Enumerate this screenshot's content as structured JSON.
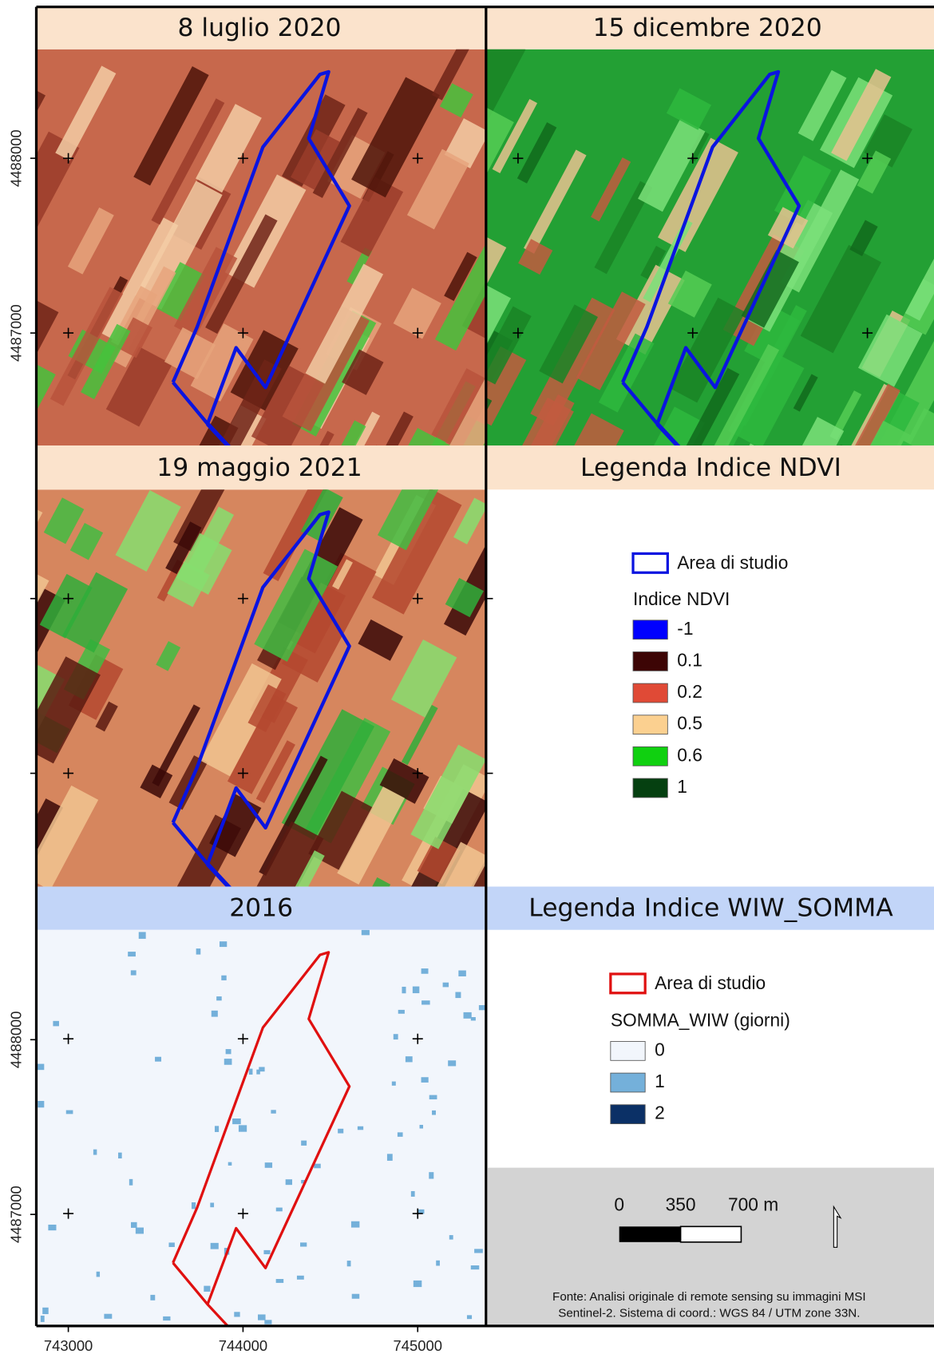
{
  "panels": [
    {
      "title": "8 luglio 2020"
    },
    {
      "title": "15 dicembre 2020"
    },
    {
      "title": "19 maggio 2021"
    },
    {
      "title": "2016"
    }
  ],
  "legend_titles": [
    "Legenda Indice NDVI",
    "Legenda Indice WIW_SOMMA"
  ],
  "ndvi_legend": {
    "area": "Area di studio",
    "area_color": "#0a14e0",
    "title": "Indice NDVI",
    "items": [
      {
        "label": "-1",
        "color": "#0000ff"
      },
      {
        "label": "0.1",
        "color": "#3d0505"
      },
      {
        "label": "0.2",
        "color": "#e04a36"
      },
      {
        "label": "0.5",
        "color": "#fbd090"
      },
      {
        "label": "0.6",
        "color": "#10d010"
      },
      {
        "label": "1",
        "color": "#054010"
      }
    ]
  },
  "wiw_legend": {
    "area": "Area di studio",
    "area_color": "#e01010",
    "title": "SOMMA_WIW (giorni)",
    "items": [
      {
        "label": "0",
        "color": "#f2f6fc"
      },
      {
        "label": "1",
        "color": "#74b0da"
      },
      {
        "label": "2",
        "color": "#0b3066"
      }
    ]
  },
  "axes": {
    "y_labels": [
      "4488000",
      "4487000"
    ],
    "x_labels": [
      "743000",
      "744000",
      "745000"
    ]
  },
  "scale_bar": {
    "labels": [
      "0",
      "350",
      "700 m"
    ]
  },
  "source": [
    "Fonte: Analisi originale di remote sensing su immagini MSI",
    "Sentinel-2. Sistema di coord.: WGS 84 / UTM zone 33N."
  ]
}
